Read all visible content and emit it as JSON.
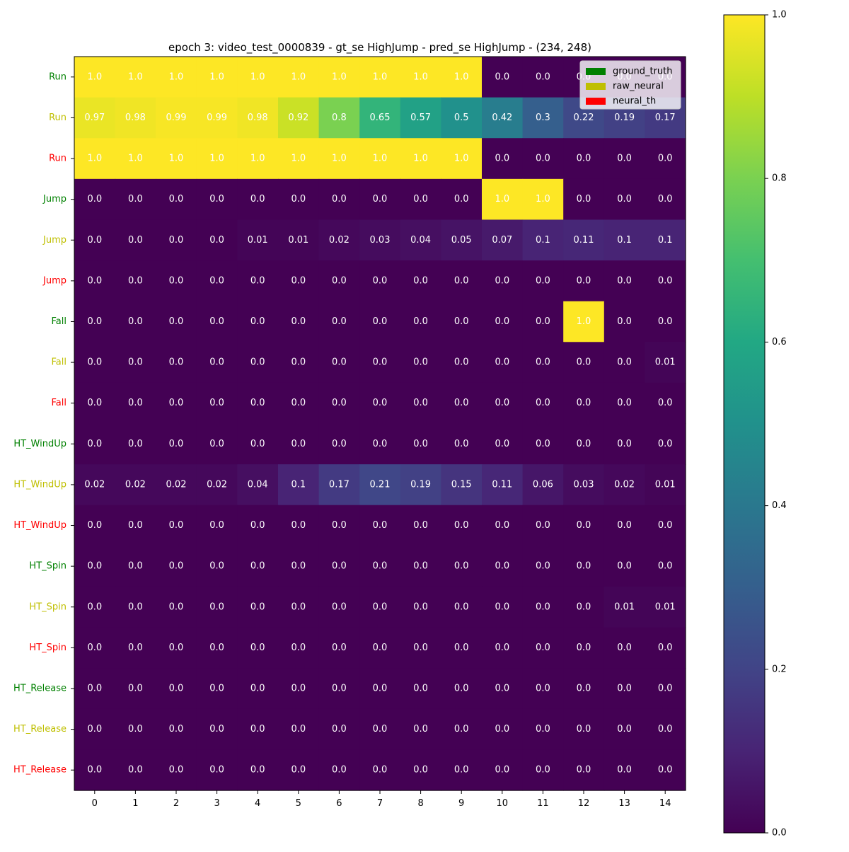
{
  "chart_data": {
    "type": "heatmap",
    "title": "epoch 3: video_test_0000839 - gt_se HighJump - pred_se HighJump - (234, 248)",
    "x": [
      0,
      1,
      2,
      3,
      4,
      5,
      6,
      7,
      8,
      9,
      10,
      11,
      12,
      13,
      14
    ],
    "rows": [
      {
        "label": "Run",
        "label_color": "#008000",
        "values": [
          1.0,
          1.0,
          1.0,
          1.0,
          1.0,
          1.0,
          1.0,
          1.0,
          1.0,
          1.0,
          0.0,
          0.0,
          0.0,
          0.0,
          0.0
        ]
      },
      {
        "label": "Run",
        "label_color": "#bfbf00",
        "values": [
          0.97,
          0.98,
          0.99,
          0.99,
          0.98,
          0.92,
          0.8,
          0.65,
          0.57,
          0.5,
          0.42,
          0.3,
          0.22,
          0.19,
          0.17
        ]
      },
      {
        "label": "Run",
        "label_color": "#ff0000",
        "values": [
          1.0,
          1.0,
          1.0,
          1.0,
          1.0,
          1.0,
          1.0,
          1.0,
          1.0,
          1.0,
          0.0,
          0.0,
          0.0,
          0.0,
          0.0
        ]
      },
      {
        "label": "Jump",
        "label_color": "#008000",
        "values": [
          0.0,
          0.0,
          0.0,
          0.0,
          0.0,
          0.0,
          0.0,
          0.0,
          0.0,
          0.0,
          1.0,
          1.0,
          0.0,
          0.0,
          0.0
        ]
      },
      {
        "label": "Jump",
        "label_color": "#bfbf00",
        "values": [
          0.0,
          0.0,
          0.0,
          0.0,
          0.01,
          0.01,
          0.02,
          0.03,
          0.04,
          0.05,
          0.07,
          0.1,
          0.11,
          0.1,
          0.1
        ]
      },
      {
        "label": "Jump",
        "label_color": "#ff0000",
        "values": [
          0.0,
          0.0,
          0.0,
          0.0,
          0.0,
          0.0,
          0.0,
          0.0,
          0.0,
          0.0,
          0.0,
          0.0,
          0.0,
          0.0,
          0.0
        ]
      },
      {
        "label": "Fall",
        "label_color": "#008000",
        "values": [
          0.0,
          0.0,
          0.0,
          0.0,
          0.0,
          0.0,
          0.0,
          0.0,
          0.0,
          0.0,
          0.0,
          0.0,
          1.0,
          0.0,
          0.0
        ]
      },
      {
        "label": "Fall",
        "label_color": "#bfbf00",
        "values": [
          0.0,
          0.0,
          0.0,
          0.0,
          0.0,
          0.0,
          0.0,
          0.0,
          0.0,
          0.0,
          0.0,
          0.0,
          0.0,
          0.0,
          0.01
        ]
      },
      {
        "label": "Fall",
        "label_color": "#ff0000",
        "values": [
          0.0,
          0.0,
          0.0,
          0.0,
          0.0,
          0.0,
          0.0,
          0.0,
          0.0,
          0.0,
          0.0,
          0.0,
          0.0,
          0.0,
          0.0
        ]
      },
      {
        "label": "HT_WindUp",
        "label_color": "#008000",
        "values": [
          0.0,
          0.0,
          0.0,
          0.0,
          0.0,
          0.0,
          0.0,
          0.0,
          0.0,
          0.0,
          0.0,
          0.0,
          0.0,
          0.0,
          0.0
        ]
      },
      {
        "label": "HT_WindUp",
        "label_color": "#bfbf00",
        "values": [
          0.02,
          0.02,
          0.02,
          0.02,
          0.04,
          0.1,
          0.17,
          0.21,
          0.19,
          0.15,
          0.11,
          0.06,
          0.03,
          0.02,
          0.01
        ]
      },
      {
        "label": "HT_WindUp",
        "label_color": "#ff0000",
        "values": [
          0.0,
          0.0,
          0.0,
          0.0,
          0.0,
          0.0,
          0.0,
          0.0,
          0.0,
          0.0,
          0.0,
          0.0,
          0.0,
          0.0,
          0.0
        ]
      },
      {
        "label": "HT_Spin",
        "label_color": "#008000",
        "values": [
          0.0,
          0.0,
          0.0,
          0.0,
          0.0,
          0.0,
          0.0,
          0.0,
          0.0,
          0.0,
          0.0,
          0.0,
          0.0,
          0.0,
          0.0
        ]
      },
      {
        "label": "HT_Spin",
        "label_color": "#bfbf00",
        "values": [
          0.0,
          0.0,
          0.0,
          0.0,
          0.0,
          0.0,
          0.0,
          0.0,
          0.0,
          0.0,
          0.0,
          0.0,
          0.0,
          0.01,
          0.01
        ]
      },
      {
        "label": "HT_Spin",
        "label_color": "#ff0000",
        "values": [
          0.0,
          0.0,
          0.0,
          0.0,
          0.0,
          0.0,
          0.0,
          0.0,
          0.0,
          0.0,
          0.0,
          0.0,
          0.0,
          0.0,
          0.0
        ]
      },
      {
        "label": "HT_Release",
        "label_color": "#008000",
        "values": [
          0.0,
          0.0,
          0.0,
          0.0,
          0.0,
          0.0,
          0.0,
          0.0,
          0.0,
          0.0,
          0.0,
          0.0,
          0.0,
          0.0,
          0.0
        ]
      },
      {
        "label": "HT_Release",
        "label_color": "#bfbf00",
        "values": [
          0.0,
          0.0,
          0.0,
          0.0,
          0.0,
          0.0,
          0.0,
          0.0,
          0.0,
          0.0,
          0.0,
          0.0,
          0.0,
          0.0,
          0.0
        ]
      },
      {
        "label": "HT_Release",
        "label_color": "#ff0000",
        "values": [
          0.0,
          0.0,
          0.0,
          0.0,
          0.0,
          0.0,
          0.0,
          0.0,
          0.0,
          0.0,
          0.0,
          0.0,
          0.0,
          0.0,
          0.0
        ]
      }
    ],
    "legend": {
      "placement": "top-right",
      "entries": [
        {
          "name": "ground_truth",
          "color": "#008000"
        },
        {
          "name": "raw_neural",
          "color": "#bfbf00"
        },
        {
          "name": "neural_th",
          "color": "#ff0000"
        }
      ]
    },
    "colorbar": {
      "colormap": "viridis",
      "range": [
        0.0,
        1.0
      ],
      "ticks": [
        "0.0",
        "0.2",
        "0.4",
        "0.6",
        "0.8",
        "1.0"
      ]
    },
    "grid": false
  }
}
